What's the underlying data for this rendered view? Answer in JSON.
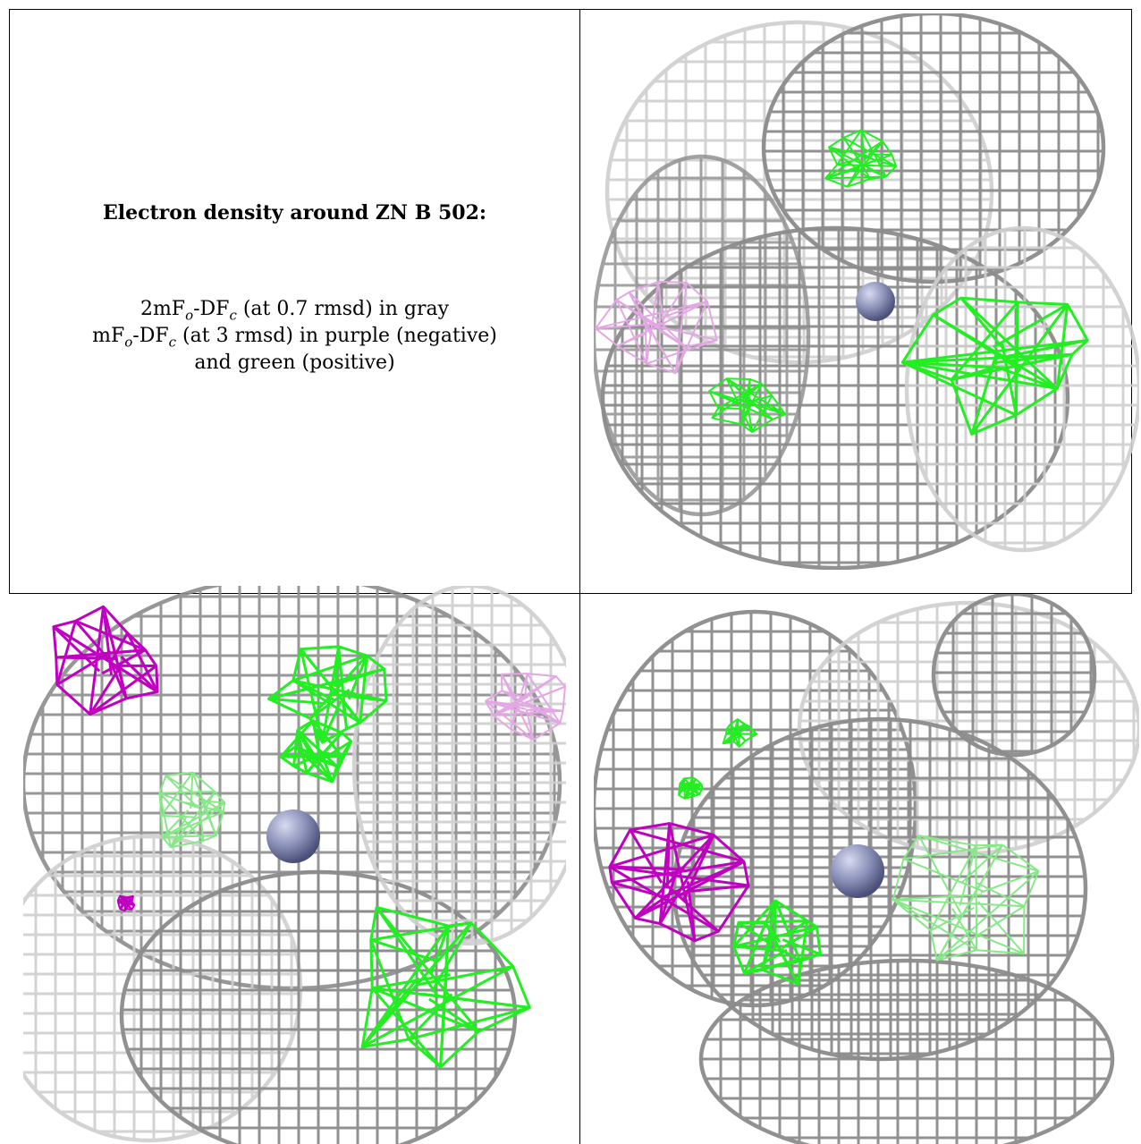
{
  "legend": {
    "title": "Electron density around ZN B 502:",
    "line1": {
      "prefix": "2mF",
      "sub1": "o",
      "mid": "-DF",
      "sub2": "c",
      "suffix": " (at 0.7 rmsd) in gray"
    },
    "line2": {
      "prefix": "mF",
      "sub1": "o",
      "mid": "-DF",
      "sub2": "c",
      "suffix": " (at 3 rmsd) in purple (negative)"
    },
    "line3": "and green (positive)"
  },
  "colors": {
    "gray_mesh": "#8c8c8c",
    "light_mesh": "#cfcfcf",
    "positive_green": "#22ee22",
    "negative_purple": "#c000c0",
    "zinc_sphere": "#8a90b8"
  },
  "panels": [
    {
      "name": "view-top-right"
    },
    {
      "name": "view-bottom-left"
    },
    {
      "name": "view-bottom-right"
    }
  ]
}
